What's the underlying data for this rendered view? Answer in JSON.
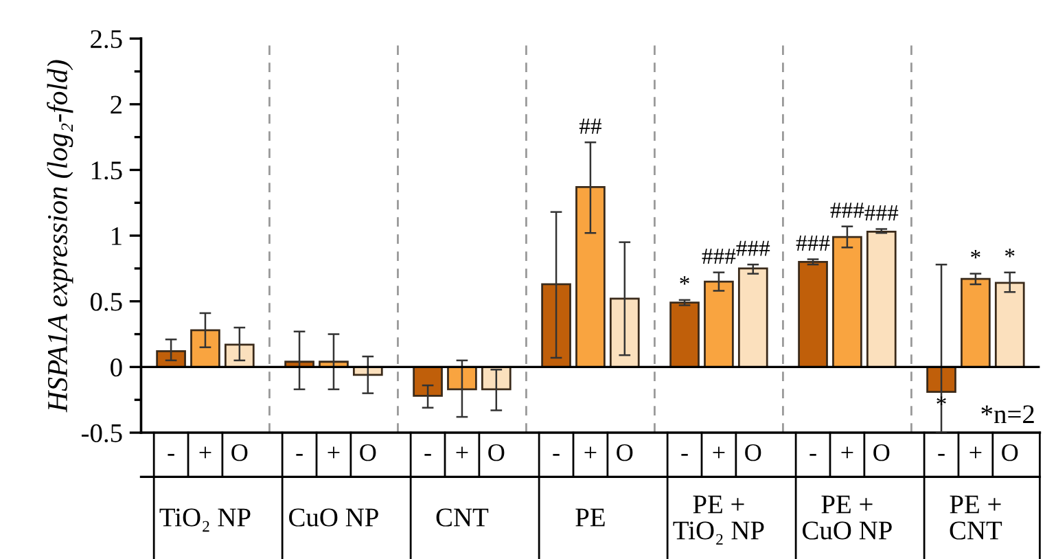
{
  "chart_data": {
    "type": "bar",
    "ylabel": "HSPA1A expression (log₂-fold)",
    "categories": [
      "TiO₂ NP",
      "CuO NP",
      "CNT",
      "PE",
      "PE +\nTiO₂ NP",
      "PE +\nCuO NP",
      "PE +\nCNT"
    ],
    "series": [
      {
        "name": "-",
        "color": "#c05f0a",
        "values": [
          0.12,
          0.04,
          -0.22,
          0.63,
          0.49,
          0.8,
          -0.19
        ],
        "value_labels": [
          null,
          null,
          null,
          null,
          "*",
          "###",
          "*"
        ],
        "errors": [
          [
            0.05,
            0.21
          ],
          [
            -0.17,
            0.27
          ],
          [
            -0.31,
            -0.14
          ],
          [
            0.07,
            1.18
          ],
          [
            0.47,
            0.51
          ],
          [
            0.78,
            0.82
          ],
          [
            -0.5,
            0.78
          ]
        ]
      },
      {
        "name": "+",
        "color": "#f9a440",
        "values": [
          0.28,
          0.04,
          -0.17,
          1.37,
          0.65,
          0.99,
          0.67
        ],
        "value_labels": [
          null,
          null,
          null,
          "##",
          "###",
          "###",
          "*"
        ],
        "errors": [
          [
            0.15,
            0.41
          ],
          [
            -0.17,
            0.25
          ],
          [
            -0.38,
            0.05
          ],
          [
            1.02,
            1.71
          ],
          [
            0.58,
            0.72
          ],
          [
            0.91,
            1.07
          ],
          [
            0.63,
            0.71
          ]
        ]
      },
      {
        "name": "O",
        "color": "#fbe0bd",
        "values": [
          0.17,
          -0.06,
          -0.17,
          0.52,
          0.75,
          1.03,
          0.64
        ],
        "value_labels": [
          null,
          null,
          null,
          null,
          "###",
          "###",
          "*"
        ],
        "errors": [
          [
            0.05,
            0.3
          ],
          [
            -0.2,
            0.08
          ],
          [
            -0.33,
            -0.02
          ],
          [
            0.09,
            0.95
          ],
          [
            0.71,
            0.78
          ],
          [
            1.02,
            1.05
          ],
          [
            0.57,
            0.72
          ]
        ]
      }
    ],
    "ylim": [
      -0.5,
      2.5
    ],
    "yticks": [
      -0.5,
      0,
      0.5,
      1,
      1.5,
      2,
      2.5
    ],
    "grid": false,
    "legend": false,
    "annotations": [
      "*n=2"
    ]
  }
}
